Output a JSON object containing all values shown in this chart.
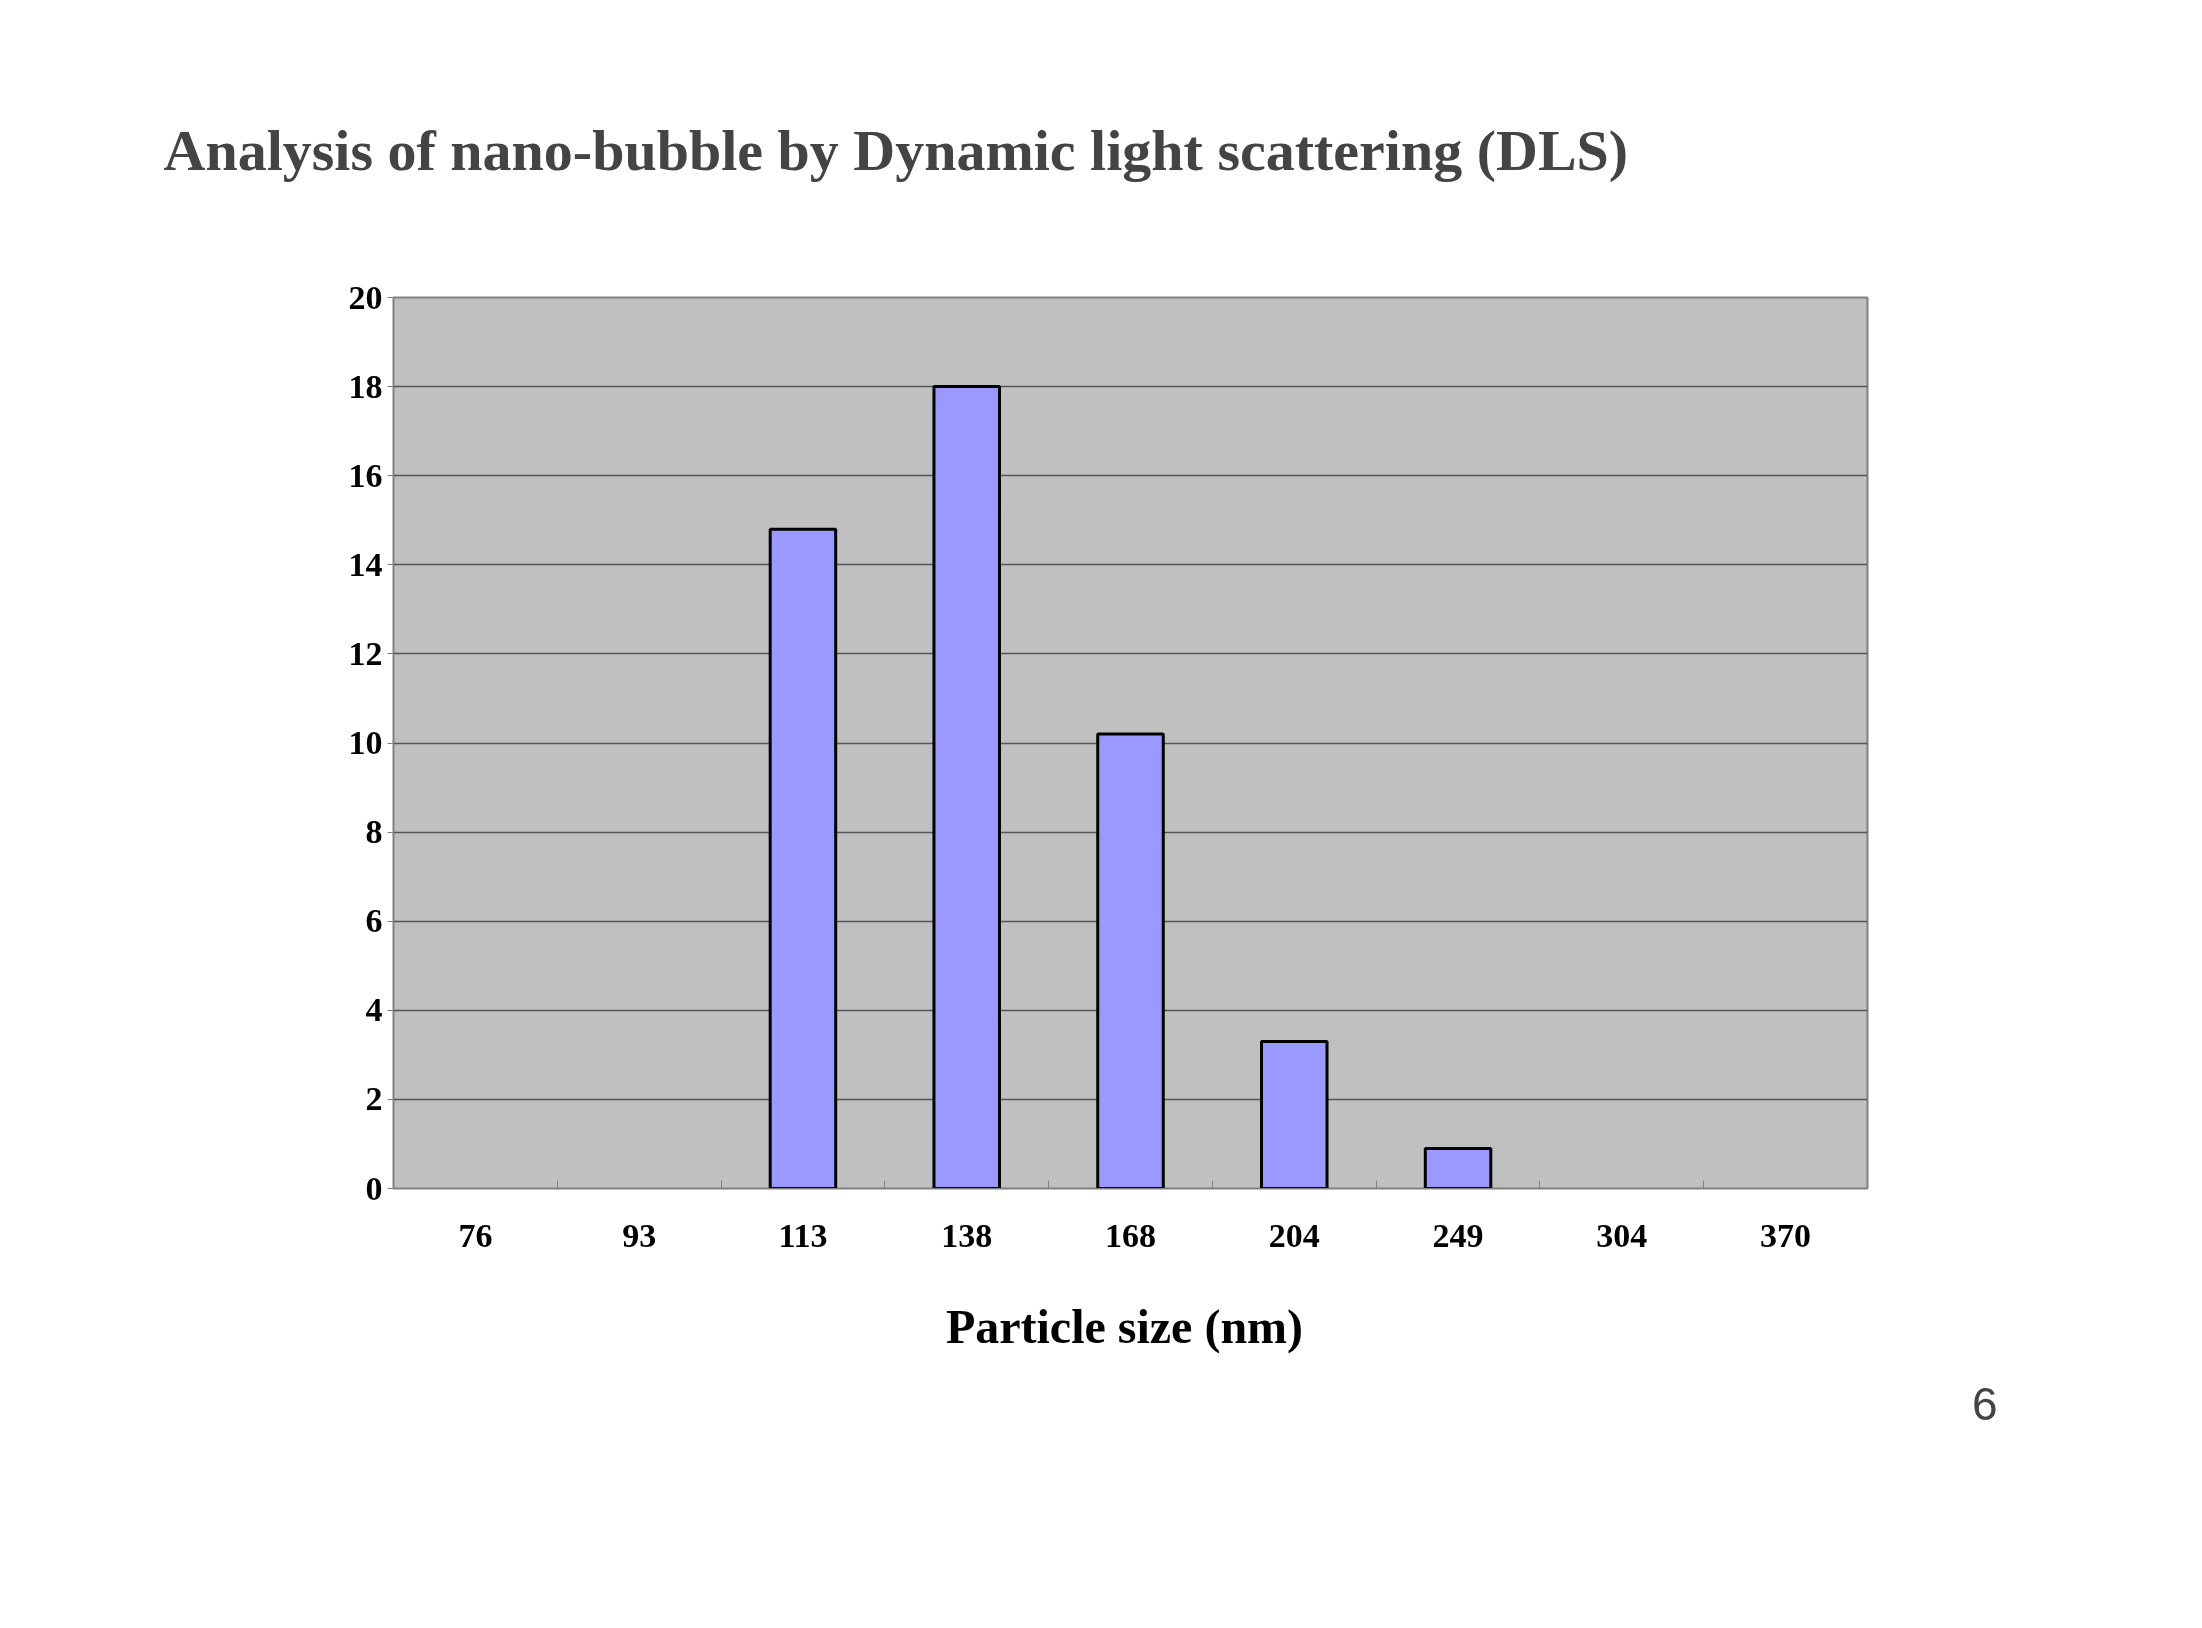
{
  "chart_data": {
    "type": "bar",
    "title": "Analysis of nano-bubble by Dynamic light scattering (DLS)",
    "xlabel": "Particle size  (nm)",
    "categories": [
      "76",
      "93",
      "113",
      "138",
      "168",
      "204",
      "249",
      "304",
      "370"
    ],
    "values": [
      0,
      0,
      14.8,
      18,
      10.2,
      3.3,
      0.9,
      0,
      0
    ],
    "color": "#9999ff",
    "ylim": [
      0,
      20
    ],
    "yticks": [
      0,
      2,
      4,
      6,
      8,
      10,
      12,
      14,
      16,
      18,
      20
    ],
    "grid": "y",
    "annotations": [
      "6"
    ]
  }
}
